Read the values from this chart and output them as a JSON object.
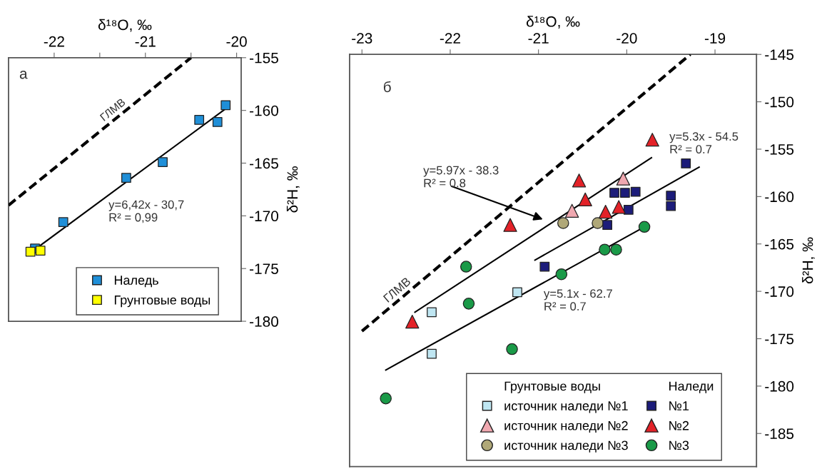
{
  "chart_data": [
    {
      "type": "scatter",
      "xlabel": "δ¹⁸O, ‰",
      "ylabel": "δ²H, ‰",
      "xlim": [
        -22.5,
        -19.95
      ],
      "xticks": [
        -22,
        {
          "value": -21.5,
          "label": null
        },
        -21,
        {
          "value": -20.5,
          "label": null
        },
        -20
      ],
      "ylim": [
        -180,
        -155
      ],
      "yticks": [
        -155,
        -160,
        -165,
        -170,
        -175,
        -180
      ],
      "legend": "bottom right",
      "grid": false,
      "annotations": [
        "а",
        "ГЛМВ",
        "y=6,42x - 30,7\nR² = 0,99"
      ],
      "series": [
        {
          "name": "Наледь",
          "marker": "square",
          "color": "#1f8fd8",
          "x": [
            -20.12,
            -20.41,
            -20.21,
            -20.81,
            -21.21,
            -21.9,
            -22.21
          ],
          "values": [
            -159.5,
            -160.9,
            -161.1,
            -164.9,
            -166.4,
            -170.6,
            -173.1
          ]
        },
        {
          "name": "Грунтовые воды",
          "marker": "square",
          "color": "#ffff00",
          "x": [
            -22.26,
            -22.15
          ],
          "values": [
            -173.4,
            -173.3
          ]
        },
        {
          "type": "line",
          "line_style": "solid",
          "color": "#000000",
          "x": [
            -22.15,
            -20.13
          ],
          "values": [
            -172.8,
            -159.9
          ]
        },
        {
          "type": "line",
          "line_style": "dashed",
          "color": "#000000",
          "x": [
            -22.5,
            -20.5
          ],
          "values": [
            -169.0,
            -155.0
          ]
        }
      ]
    },
    {
      "type": "scatter",
      "xlabel": "δ¹⁸O, ‰",
      "ylabel": "δ²H, ‰",
      "xlim": [
        -23.14,
        -18.53
      ],
      "xticks": [
        -23,
        -22,
        -21,
        -20,
        -19
      ],
      "ylim": [
        -188.5,
        -145
      ],
      "yticks": [
        -145,
        -150,
        -155,
        -160,
        -165,
        -170,
        -175,
        -180,
        -185
      ],
      "legend": "bottom right",
      "grid": false,
      "annotations": [
        "б",
        "ГЛМВ",
        "y=5.97x - 38.3\nR² = 0.8",
        "y=5.3x - 54.5\nR² = 0.7",
        "y=5.1x - 62.7\nR² = 0.7",
        "Грунтовые воды",
        "Наледи"
      ],
      "series": [
        {
          "name": "источник наледи №1",
          "marker": "square",
          "color": "#bfe6f2",
          "x": [
            -22.21,
            -22.21,
            -21.24
          ],
          "values": [
            -172.2,
            -176.6,
            -170.1
          ]
        },
        {
          "name": "источник наледи №2",
          "marker": "triangle",
          "color": "#f0a8b0",
          "x": [
            -20.62,
            -20.04
          ],
          "values": [
            -161.5,
            -158.1
          ]
        },
        {
          "name": "источник наледи №3",
          "marker": "circle",
          "color": "#b0a878",
          "x": [
            -20.72,
            -20.33
          ],
          "values": [
            -162.8,
            -162.8
          ]
        },
        {
          "name": "№1",
          "marker": "square",
          "color": "#1c1c7a",
          "x": [
            -19.33,
            -20.14,
            -20.02,
            -19.9,
            -19.5,
            -19.5,
            -19.98,
            -20.22,
            -20.93
          ],
          "values": [
            -156.5,
            -159.6,
            -159.6,
            -159.5,
            -159.9,
            -161.0,
            -161.4,
            -163.0,
            -167.4
          ]
        },
        {
          "name": "№2",
          "marker": "triangle",
          "color": "#e32228",
          "x": [
            -19.71,
            -20.54,
            -20.47,
            -21.32,
            -22.43,
            -20.24,
            -20.09
          ],
          "values": [
            -154.0,
            -158.3,
            -160.3,
            -163.0,
            -173.2,
            -161.6,
            -161.1
          ]
        },
        {
          "name": "№3",
          "marker": "circle",
          "color": "#1a9a48",
          "x": [
            -19.8,
            -20.25,
            -20.12,
            -20.74,
            -21.82,
            -21.79,
            -21.3,
            -22.73
          ],
          "values": [
            -163.2,
            -165.6,
            -165.6,
            -168.2,
            -167.4,
            -171.3,
            -176.1,
            -181.3
          ]
        },
        {
          "type": "line",
          "line_style": "solid",
          "color": "#000000",
          "x": [
            -22.4,
            -19.72
          ],
          "values": [
            -172.2,
            -155.9
          ]
        },
        {
          "type": "line",
          "line_style": "solid",
          "color": "#000000",
          "x": [
            -21.04,
            -19.18
          ],
          "values": [
            -166.7,
            -156.9
          ]
        },
        {
          "type": "line",
          "line_style": "solid",
          "color": "#000000",
          "x": [
            -22.73,
            -19.8
          ],
          "values": [
            -178.3,
            -163.2
          ]
        },
        {
          "type": "line",
          "line_style": "dashed",
          "color": "#000000",
          "x": [
            -23.0,
            -19.28
          ],
          "values": [
            -174.2,
            -145.0
          ]
        }
      ]
    }
  ]
}
